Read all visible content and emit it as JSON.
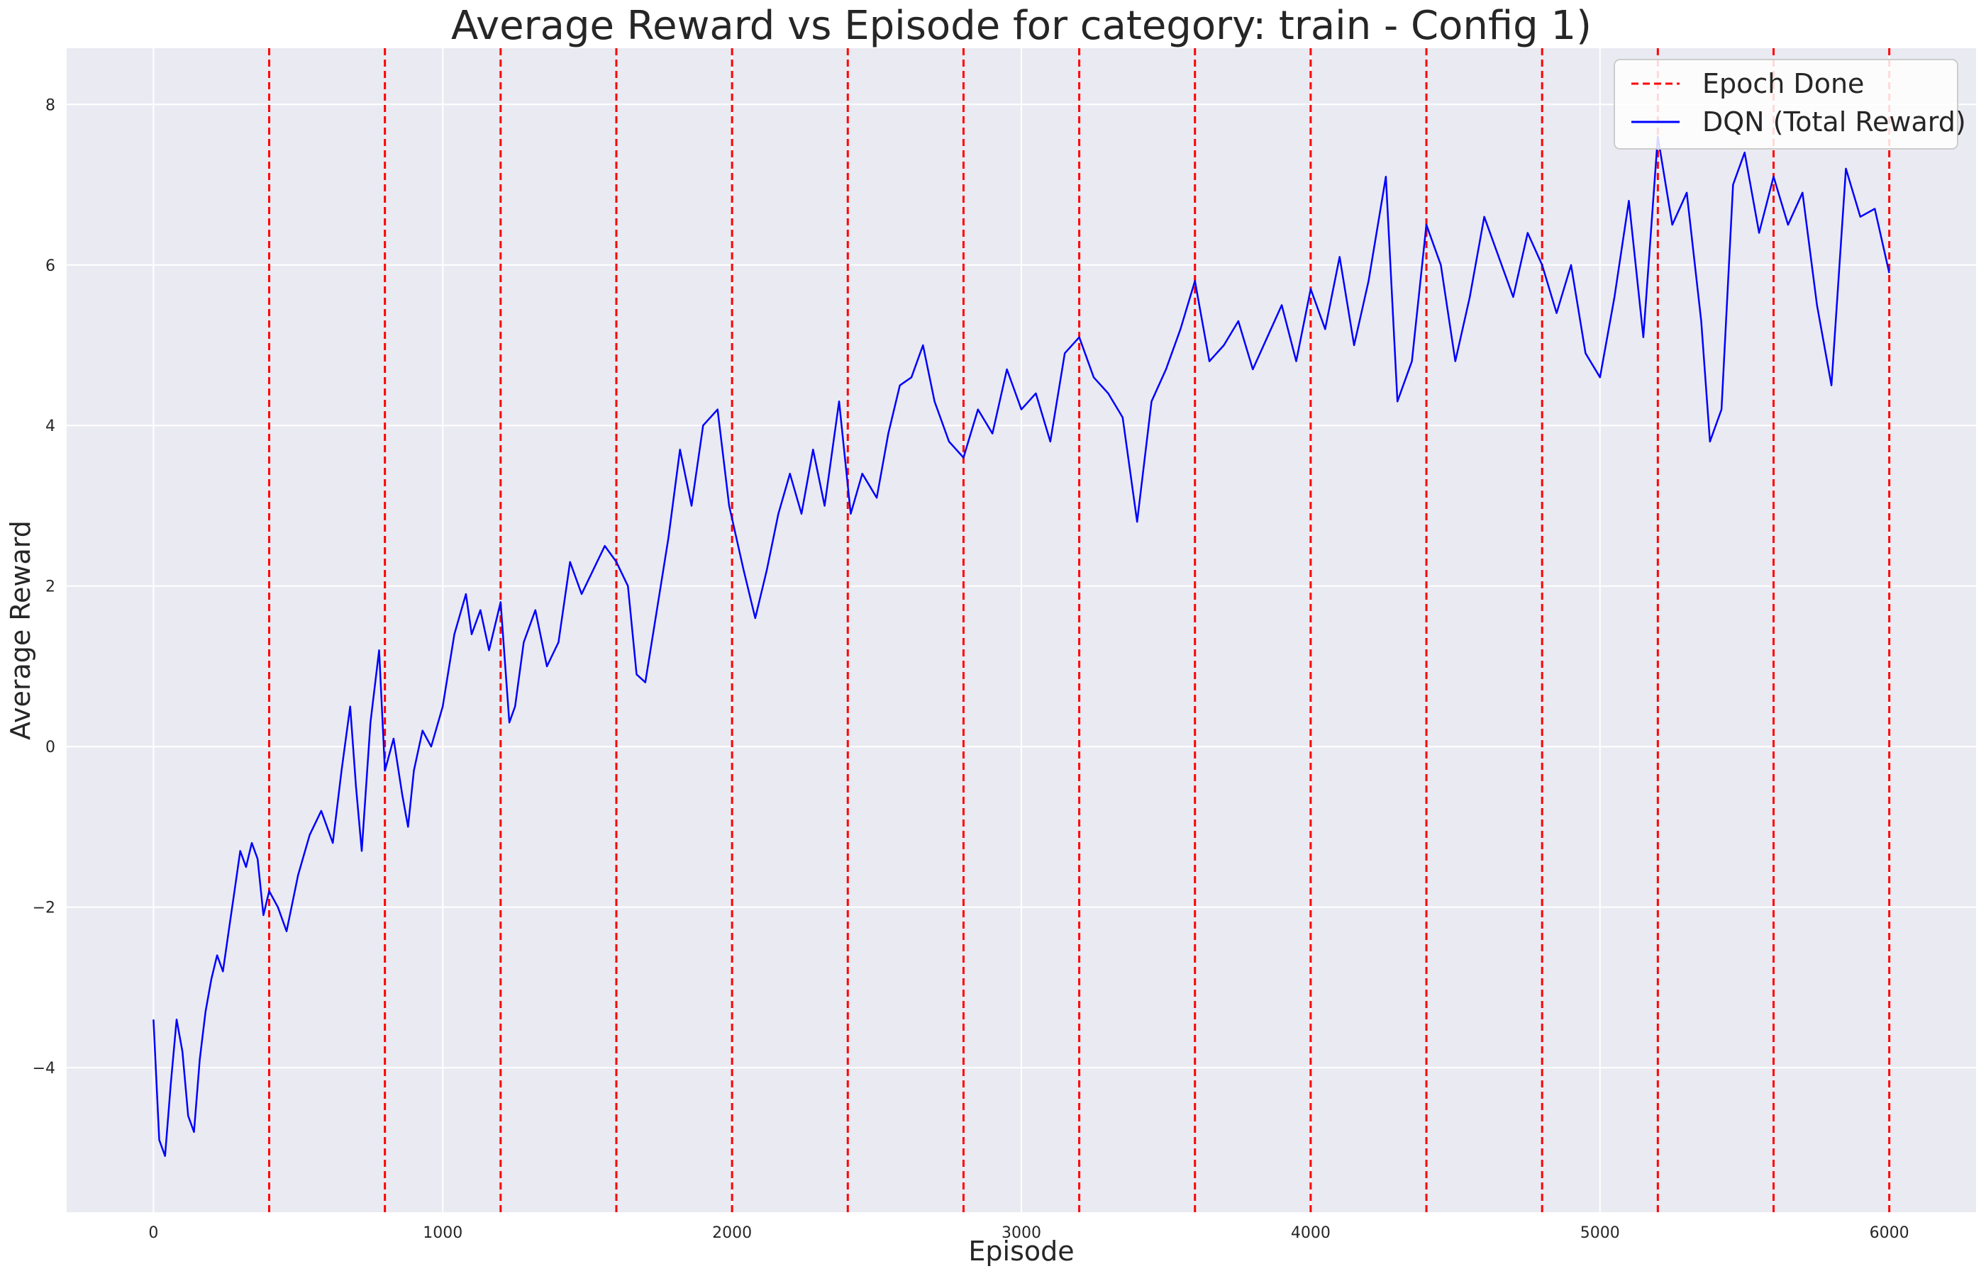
{
  "chart_data": {
    "type": "line",
    "title": "Average Reward vs Episode for category: train - Config 1)",
    "xlabel": "Episode",
    "ylabel": "Average Reward",
    "xlim": [
      -300,
      6300
    ],
    "ylim": [
      -5.8,
      8.7
    ],
    "xticks": [
      0,
      1000,
      2000,
      3000,
      4000,
      5000,
      6000
    ],
    "yticks": [
      -4,
      -2,
      0,
      2,
      4,
      6,
      8
    ],
    "ytick_labels": [
      "−4",
      "−2",
      "0",
      "2",
      "4",
      "6",
      "8"
    ],
    "grid": true,
    "legend_position": "top-right",
    "colors": {
      "background": "#eaeaf2",
      "grid": "#ffffff",
      "series": "#0000ff",
      "epoch_line": "#ff0000"
    },
    "epoch_lines": {
      "name": "Epoch Done",
      "x": [
        400,
        800,
        1200,
        1600,
        2000,
        2400,
        2800,
        3200,
        3600,
        4000,
        4400,
        4800,
        5200,
        5600,
        6000
      ]
    },
    "series": [
      {
        "name": "DQN (Total Reward)",
        "x": [
          0,
          20,
          40,
          60,
          80,
          100,
          120,
          140,
          160,
          180,
          200,
          220,
          240,
          260,
          280,
          300,
          320,
          340,
          360,
          380,
          400,
          430,
          460,
          500,
          540,
          580,
          620,
          650,
          680,
          700,
          720,
          750,
          780,
          800,
          830,
          860,
          880,
          900,
          930,
          960,
          1000,
          1040,
          1080,
          1100,
          1130,
          1160,
          1200,
          1230,
          1250,
          1280,
          1320,
          1360,
          1400,
          1440,
          1480,
          1520,
          1560,
          1600,
          1640,
          1670,
          1700,
          1740,
          1780,
          1820,
          1860,
          1900,
          1950,
          1990,
          2040,
          2080,
          2120,
          2160,
          2200,
          2240,
          2280,
          2320,
          2370,
          2410,
          2450,
          2500,
          2540,
          2580,
          2620,
          2660,
          2700,
          2750,
          2800,
          2850,
          2900,
          2950,
          3000,
          3050,
          3100,
          3150,
          3200,
          3250,
          3300,
          3350,
          3400,
          3450,
          3500,
          3550,
          3600,
          3650,
          3700,
          3750,
          3800,
          3850,
          3900,
          3950,
          4000,
          4050,
          4100,
          4150,
          4200,
          4260,
          4300,
          4350,
          4400,
          4450,
          4500,
          4550,
          4600,
          4650,
          4700,
          4750,
          4800,
          4850,
          4900,
          4950,
          5000,
          5050,
          5100,
          5150,
          5200,
          5250,
          5300,
          5350,
          5380,
          5420,
          5460,
          5500,
          5550,
          5600,
          5650,
          5700,
          5750,
          5800,
          5850,
          5900,
          5950,
          6000
        ],
        "values": [
          -3.4,
          -4.9,
          -5.1,
          -4.2,
          -3.4,
          -3.8,
          -4.6,
          -4.8,
          -3.9,
          -3.3,
          -2.9,
          -2.6,
          -2.8,
          -2.3,
          -1.8,
          -1.3,
          -1.5,
          -1.2,
          -1.4,
          -2.1,
          -1.8,
          -2.0,
          -2.3,
          -1.6,
          -1.1,
          -0.8,
          -1.2,
          -0.3,
          0.5,
          -0.5,
          -1.3,
          0.3,
          1.2,
          -0.3,
          0.1,
          -0.6,
          -1.0,
          -0.3,
          0.2,
          0.0,
          0.5,
          1.4,
          1.9,
          1.4,
          1.7,
          1.2,
          1.8,
          0.3,
          0.5,
          1.3,
          1.7,
          1.0,
          1.3,
          2.3,
          1.9,
          2.2,
          2.5,
          2.3,
          2.0,
          0.9,
          0.8,
          1.7,
          2.6,
          3.7,
          3.0,
          4.0,
          4.2,
          3.0,
          2.2,
          1.6,
          2.2,
          2.9,
          3.4,
          2.9,
          3.7,
          3.0,
          4.3,
          2.9,
          3.4,
          3.1,
          3.9,
          4.5,
          4.6,
          5.0,
          4.3,
          3.8,
          3.6,
          4.2,
          3.9,
          4.7,
          4.2,
          4.4,
          3.8,
          4.9,
          5.1,
          4.6,
          4.4,
          4.1,
          2.8,
          4.3,
          4.7,
          5.2,
          5.8,
          4.8,
          5.0,
          5.3,
          4.7,
          5.1,
          5.5,
          4.8,
          5.7,
          5.2,
          6.1,
          5.0,
          5.8,
          7.1,
          4.3,
          4.8,
          6.5,
          6.0,
          4.8,
          5.6,
          6.6,
          6.1,
          5.6,
          6.4,
          6.0,
          5.4,
          6.0,
          4.9,
          4.6,
          5.6,
          6.8,
          5.1,
          7.6,
          6.5,
          6.9,
          5.3,
          3.8,
          4.2,
          7.0,
          7.4,
          6.4,
          7.1,
          6.5,
          6.9,
          5.5,
          4.5,
          7.2,
          6.6,
          6.7,
          5.9
        ]
      }
    ]
  }
}
